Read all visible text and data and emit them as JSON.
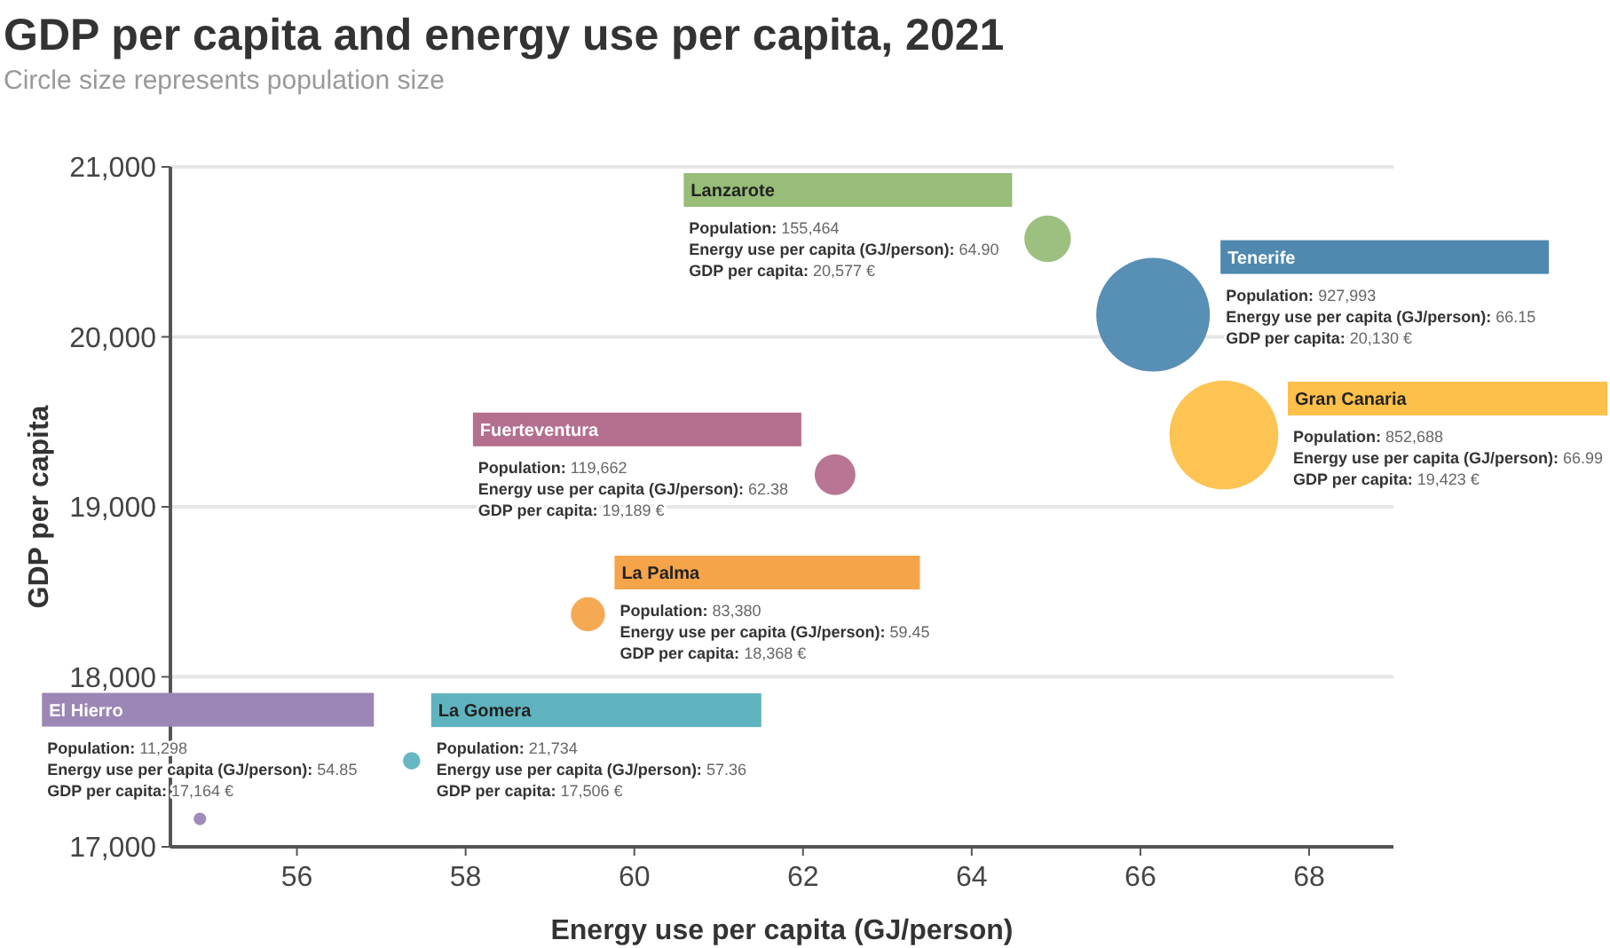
{
  "chart_data": {
    "type": "bubble",
    "title": "GDP per capita and energy use per capita, 2021",
    "subtitle": "Circle size represents population size",
    "xlabel": "Energy use per capita (GJ/person)",
    "ylabel": "GDP per capita",
    "xlim": [
      54.5,
      69
    ],
    "xticks": [
      56,
      58,
      60,
      62,
      64,
      66,
      68
    ],
    "ylim": [
      17000,
      21000
    ],
    "yticks": [
      {
        "value": 17000,
        "label": "17,000"
      },
      {
        "value": 18000,
        "label": "18,000"
      },
      {
        "value": 19000,
        "label": "19,000"
      },
      {
        "value": 20000,
        "label": "20,000"
      },
      {
        "value": 21000,
        "label": "21,000"
      }
    ],
    "grid": "y",
    "legend": false,
    "series": [
      {
        "name": "Lanzarote",
        "color": "#97bd78",
        "x": [
          64.9
        ],
        "values": [
          20577
        ],
        "sizes": [
          0.168
        ]
      },
      {
        "name": "Tenerife",
        "color": "#4f89b0",
        "x": [
          66.15
        ],
        "values": [
          20130
        ],
        "sizes": [
          1
        ]
      },
      {
        "name": "Gran Canaria",
        "color": "#fdc04a",
        "x": [
          66.99
        ],
        "values": [
          19423
        ],
        "sizes": [
          0.919
        ]
      },
      {
        "name": "Fuerteventura",
        "color": "#b56f8e",
        "x": [
          62.38
        ],
        "values": [
          19189
        ],
        "sizes": [
          0.129
        ]
      },
      {
        "name": "La Palma",
        "color": "#f5a44a",
        "x": [
          59.45
        ],
        "values": [
          18368
        ],
        "sizes": [
          0.0899
        ]
      },
      {
        "name": "La Gomera",
        "color": "#5fb3bf",
        "x": [
          57.36
        ],
        "values": [
          17506
        ],
        "sizes": [
          0.0234
        ]
      },
      {
        "name": "El Hierro",
        "color": "#9b86b6",
        "x": [
          54.85
        ],
        "values": [
          17164
        ],
        "sizes": [
          0.0122
        ]
      }
    ],
    "annotations": [
      "Population: 155,464",
      "Energy use per capita (GJ/person): 64.90",
      "GDP per capita: 20,577 €",
      "Population: 927,993",
      "Energy use per capita (GJ/person): 66.15",
      "GDP per capita: 20,130 €",
      "Population: 852,688",
      "Energy use per capita (GJ/person): 66.99",
      "GDP per capita: 19,423 €",
      "Population: 119,662",
      "Energy use per capita (GJ/person): 62.38",
      "GDP per capita: 19,189 €",
      "Population: 83,380",
      "Energy use per capita (GJ/person): 59.45",
      "GDP per capita: 18,368 €",
      "Population: 21,734",
      "Energy use per capita (GJ/person): 57.36",
      "GDP per capita: 17,506 €",
      "Population: 11,298",
      "Energy use per capita (GJ/person): 54.85",
      "GDP per capita: 17,164 €"
    ]
  }
}
